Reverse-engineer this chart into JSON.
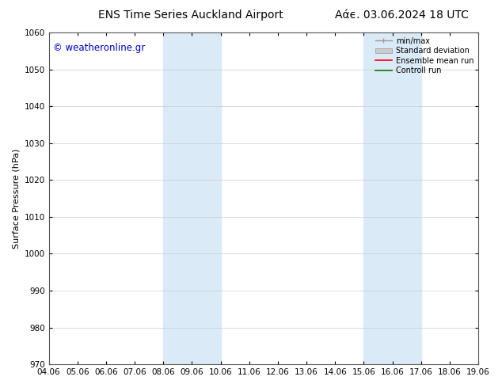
{
  "title_left": "ENS Time Series Auckland Airport",
  "title_right": "Αάϵ. 03.06.2024 18 UTC",
  "ylabel": "Surface Pressure (hPa)",
  "ylim": [
    970,
    1060
  ],
  "yticks": [
    970,
    980,
    990,
    1000,
    1010,
    1020,
    1030,
    1040,
    1050,
    1060
  ],
  "xtick_labels": [
    "04.06",
    "05.06",
    "06.06",
    "07.06",
    "08.06",
    "09.06",
    "10.06",
    "11.06",
    "12.06",
    "13.06",
    "14.06",
    "15.06",
    "16.06",
    "17.06",
    "18.06",
    "19.06"
  ],
  "shaded_bands": [
    {
      "xstart": 4,
      "xend": 6,
      "color": "#daeaf7"
    },
    {
      "xstart": 11,
      "xend": 13,
      "color": "#daeaf7"
    }
  ],
  "watermark_text": "© weatheronline.gr",
  "watermark_color": "#0000cc",
  "bg_color": "#ffffff",
  "spine_color": "#555555",
  "title_fontsize": 10,
  "axis_fontsize": 8,
  "tick_fontsize": 7.5,
  "watermark_fontsize": 8.5
}
